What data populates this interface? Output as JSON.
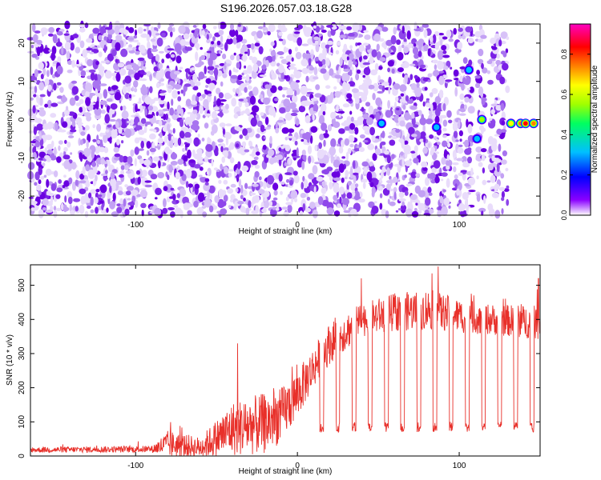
{
  "title": "S196.2026.057.03.18.G28",
  "colors": {
    "snr_line": "#e8302a",
    "frame": "#000000"
  },
  "chart_data": [
    {
      "type": "heatmap",
      "name": "spectrogram",
      "xlabel": "Height of straight line (km)",
      "ylabel": "Frequency (Hz)",
      "xlim": [
        -165,
        150
      ],
      "ylim": [
        -25,
        25
      ],
      "x_ticks": [
        -100,
        0,
        100
      ],
      "y_ticks": [
        -20,
        -10,
        0,
        10,
        20
      ],
      "colorbar": {
        "label": "Normalized spectral amplitude",
        "range": [
          0.0,
          0.95
        ],
        "ticks": [
          0.0,
          0.2,
          0.4,
          0.6,
          0.8
        ],
        "colormap": [
          "#ffffff",
          "#8a00ff",
          "#0000ff",
          "#00c0ff",
          "#00ff60",
          "#a0ff00",
          "#ffff00",
          "#ff8000",
          "#ff0000",
          "#ff00c0"
        ]
      },
      "noise_floor_band_end_km": 130,
      "peaks": [
        {
          "x": 52,
          "y": -1,
          "amp": 0.45
        },
        {
          "x": 86,
          "y": -2,
          "amp": 0.4
        },
        {
          "x": 106,
          "y": 13,
          "amp": 0.35
        },
        {
          "x": 111,
          "y": -5,
          "amp": 0.35
        },
        {
          "x": 114,
          "y": 0,
          "amp": 0.65
        },
        {
          "x": 132,
          "y": -1,
          "amp": 0.75
        },
        {
          "x": 138,
          "y": -1,
          "amp": 0.8
        },
        {
          "x": 141,
          "y": -1,
          "amp": 0.9
        },
        {
          "x": 146,
          "y": -1,
          "amp": 0.85
        }
      ]
    },
    {
      "type": "line",
      "name": "snr",
      "xlabel": "Height of straight line (km)",
      "ylabel": "SNR (10 * v/v)",
      "xlim": [
        -165,
        150
      ],
      "ylim": [
        0,
        560
      ],
      "x_ticks": [
        -100,
        0,
        100
      ],
      "y_ticks": [
        0,
        100,
        200,
        300,
        400,
        500
      ],
      "envelope": {
        "x": [
          -165,
          -90,
          -80,
          -60,
          -40,
          -20,
          -10,
          0,
          10,
          20,
          40,
          60,
          80,
          100,
          120,
          150
        ],
        "base": [
          18,
          20,
          35,
          25,
          80,
          95,
          120,
          180,
          260,
          330,
          400,
          420,
          430,
          410,
          400,
          390
        ],
        "amp": [
          8,
          10,
          40,
          30,
          80,
          90,
          80,
          70,
          60,
          60,
          50,
          55,
          60,
          50,
          45,
          50
        ]
      },
      "peaks": [
        {
          "x": -37,
          "y": 330
        },
        {
          "x": 87,
          "y": 555
        },
        {
          "x": 149,
          "y": 520
        }
      ],
      "dropouts_x": [
        15,
        25,
        35,
        45,
        55,
        65,
        75,
        85,
        95,
        105,
        115,
        125,
        135,
        145
      ],
      "dropout_level": 85
    }
  ]
}
